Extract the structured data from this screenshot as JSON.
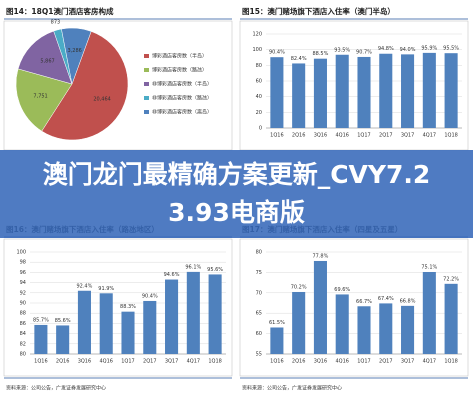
{
  "chart_data": [
    {
      "type": "pie",
      "title": "图14：18Q1澳门酒店客房构成",
      "categories": [
        "博彩酒店客房数（半岛）",
        "博彩酒店客房数（路氹）",
        "非博彩酒店客房数（半岛）",
        "非博彩酒店客房数（路氹）",
        "非博彩酒店客房数（离岛）"
      ],
      "values": [
        20464,
        7751,
        5867,
        873,
        3286
      ],
      "value_labels": [
        "20,464",
        "7,751",
        "5,867",
        "873",
        "3,286"
      ],
      "colors": [
        "#c0504d",
        "#9bbb59",
        "#8064a2",
        "#4bacc6",
        "#4f81bd"
      ]
    },
    {
      "type": "bar",
      "title": "图15：澳门赌场旗下酒店入住率（澳门半岛）",
      "categories": [
        "1Q16",
        "2Q16",
        "3Q16",
        "4Q16",
        "1Q17",
        "2Q17",
        "3Q17",
        "4Q17",
        "1Q18"
      ],
      "values": [
        90.4,
        82.4,
        88.5,
        93.5,
        90.7,
        94.8,
        94.0,
        95.9,
        95.5
      ],
      "value_labels": [
        "90.4%",
        "82.4%",
        "88.5%",
        "93.5%",
        "90.7%",
        "94.8%",
        "94.0%",
        "95.9%",
        "95.5%"
      ],
      "color": "#4f81bd",
      "ylim": [
        0,
        120
      ],
      "yticks": [
        0,
        20,
        40,
        60,
        80,
        100,
        120
      ],
      "grid": true
    },
    {
      "type": "bar",
      "title": "图16：澳门赌场旗下酒店入住率（路氹地区）",
      "categories": [
        "1Q16",
        "2Q16",
        "3Q16",
        "4Q16",
        "1Q17",
        "2Q17",
        "3Q17",
        "4Q17",
        "1Q18"
      ],
      "values": [
        85.7,
        85.6,
        92.4,
        91.9,
        88.3,
        90.4,
        94.6,
        96.1,
        95.6
      ],
      "value_labels": [
        "85.7%",
        "85.6%",
        "92.4%",
        "91.9%",
        "88.3%",
        "90.4%",
        "94.6%",
        "96.1%",
        "95.6%"
      ],
      "color": "#4f81bd",
      "ylim": [
        80,
        100
      ],
      "yticks": [
        80,
        82,
        84,
        86,
        88,
        90,
        92,
        94,
        96,
        98,
        100
      ],
      "grid": true,
      "source": "资料来源：公司公告，广发证券发展研究中心"
    },
    {
      "type": "bar",
      "title": "图17：澳门赌场旗下酒店入住率（四星及五星）",
      "categories": [
        "1Q16",
        "2Q16",
        "3Q16",
        "4Q16",
        "1Q17",
        "2Q17",
        "3Q17",
        "4Q17",
        "1Q18"
      ],
      "values": [
        61.5,
        70.2,
        77.8,
        69.6,
        66.7,
        67.4,
        66.8,
        75.1,
        72.2
      ],
      "value_labels": [
        "61.5%",
        "70.2%",
        "77.8%",
        "69.6%",
        "66.7%",
        "67.4%",
        "66.8%",
        "75.1%",
        "72.2%"
      ],
      "color": "#4f81bd",
      "ylim": [
        55,
        80
      ],
      "yticks": [
        55,
        60,
        65,
        70,
        75,
        80
      ],
      "grid": true,
      "source": "资料来源：公司公告，广发证券发展研究中心"
    }
  ],
  "banner": "澳门龙门最精确方案更新_CVY7.23.93电商版"
}
